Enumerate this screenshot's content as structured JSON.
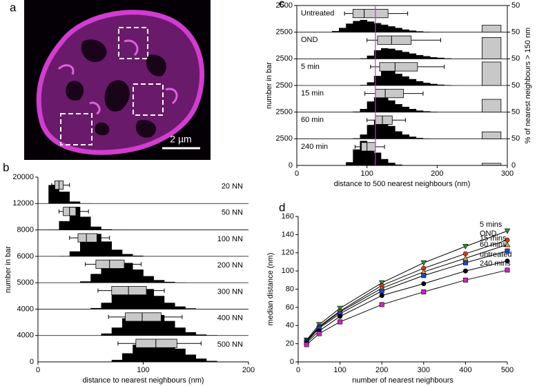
{
  "panels": [
    "a",
    "b",
    "c",
    "d"
  ],
  "image": {
    "scale_bar": "2 µm"
  },
  "chart_data": [
    {
      "type": "histogram-stack",
      "xlabel": "distance to nearest neighbours (nm)",
      "ylabel": "number in bar",
      "xlim": [
        0,
        200
      ],
      "xticks": [
        0,
        100,
        200
      ],
      "bins": [
        0,
        10,
        20,
        30,
        40,
        50,
        60,
        70,
        80,
        90,
        100,
        110,
        120,
        130,
        140,
        150,
        160,
        170,
        180,
        190,
        200
      ],
      "rows": [
        {
          "name": "20 NN",
          "ylim": [
            0,
            20000
          ],
          "values": [
            0,
            14000,
            9000,
            1500,
            200,
            0,
            0,
            0,
            0,
            0,
            0,
            0,
            0,
            0,
            0,
            0,
            0,
            0,
            0,
            0
          ],
          "box": [
            13,
            16,
            20,
            24,
            30
          ]
        },
        {
          "name": "50 NN",
          "ylim": [
            0,
            12000
          ],
          "values": [
            0,
            100,
            4000,
            10500,
            6000,
            1500,
            300,
            50,
            0,
            0,
            0,
            0,
            0,
            0,
            0,
            0,
            0,
            0,
            0,
            0
          ],
          "box": [
            20,
            24,
            30,
            36,
            48
          ]
        },
        {
          "name": "100 NN",
          "ylim": [
            0,
            8000
          ],
          "values": [
            0,
            0,
            100,
            1500,
            5500,
            6800,
            4500,
            2000,
            700,
            200,
            50,
            0,
            0,
            0,
            0,
            0,
            0,
            0,
            0,
            0
          ],
          "box": [
            30,
            38,
            46,
            56,
            68
          ]
        },
        {
          "name": "200 NN",
          "ylim": [
            0,
            6000
          ],
          "values": [
            0,
            0,
            0,
            0,
            300,
            2000,
            4500,
            5200,
            4500,
            3000,
            1500,
            600,
            200,
            50,
            0,
            0,
            0,
            0,
            0,
            0
          ],
          "box": [
            45,
            55,
            68,
            82,
            98
          ]
        },
        {
          "name": "300 NN",
          "ylim": [
            0,
            5000
          ],
          "values": [
            0,
            0,
            0,
            0,
            0,
            200,
            1200,
            3000,
            4000,
            4200,
            3800,
            2500,
            1200,
            500,
            150,
            50,
            0,
            0,
            0,
            0
          ],
          "box": [
            57,
            70,
            86,
            103,
            120
          ]
        },
        {
          "name": "400 NN",
          "ylim": [
            0,
            4000
          ],
          "values": [
            0,
            0,
            0,
            0,
            0,
            0,
            300,
            1200,
            2600,
            3300,
            3400,
            3100,
            2200,
            1200,
            500,
            150,
            50,
            0,
            0,
            0
          ],
          "box": [
            67,
            83,
            99,
            117,
            137
          ]
        },
        {
          "name": "500 NN",
          "ylim": [
            0,
            4000
          ],
          "values": [
            0,
            0,
            0,
            0,
            0,
            0,
            0,
            300,
            1300,
            2600,
            3100,
            3100,
            2800,
            2000,
            1100,
            500,
            150,
            50,
            0,
            0
          ],
          "box": [
            76,
            93,
            112,
            132,
            155
          ]
        }
      ]
    },
    {
      "type": "histogram-stack",
      "xlabel": "distance to 500 nearest neighbours (nm)",
      "ylabel": "number in bar",
      "y2label": "% of nearest neighbours > 150 nm",
      "xlim": [
        0,
        300
      ],
      "xticks": [
        0,
        100,
        200,
        300
      ],
      "y2lim": [
        0,
        50
      ],
      "reference_x": 112,
      "reference_color": "#e020e0",
      "bins": [
        0,
        10,
        20,
        30,
        40,
        50,
        60,
        70,
        80,
        90,
        100,
        110,
        120,
        130,
        140,
        150,
        160,
        170,
        180,
        190,
        200,
        210,
        220,
        230,
        240,
        250,
        260,
        270,
        280,
        290,
        300
      ],
      "rows": [
        {
          "name": "Untreated",
          "ylim": [
            0,
            2500
          ],
          "pct": 13,
          "values": [
            0,
            0,
            0,
            0,
            0,
            100,
            400,
            800,
            1050,
            1150,
            1000,
            850,
            700,
            550,
            400,
            250,
            150,
            80,
            30,
            10,
            0,
            0,
            0,
            0,
            0,
            0,
            0,
            0,
            0,
            0
          ],
          "box": [
            68,
            80,
            96,
            130,
            158
          ]
        },
        {
          "name": "OND",
          "ylim": [
            0,
            2500
          ],
          "pct": 40,
          "values": [
            0,
            0,
            0,
            0,
            0,
            0,
            0,
            0,
            0,
            50,
            300,
            800,
            1000,
            950,
            800,
            650,
            500,
            350,
            250,
            150,
            100,
            50,
            20,
            0,
            0,
            0,
            0,
            0,
            0,
            0
          ],
          "box": [
            100,
            115,
            135,
            163,
            205
          ]
        },
        {
          "name": "5 min",
          "ylim": [
            0,
            2500
          ],
          "pct": 44,
          "values": [
            0,
            0,
            0,
            0,
            0,
            0,
            0,
            0,
            0,
            50,
            300,
            900,
            1400,
            1350,
            1100,
            850,
            600,
            400,
            250,
            150,
            80,
            40,
            10,
            0,
            0,
            0,
            0,
            0,
            0,
            0
          ],
          "box": [
            105,
            118,
            140,
            172,
            210
          ]
        },
        {
          "name": "15 min",
          "ylim": [
            0,
            2500
          ],
          "pct": 24,
          "values": [
            0,
            0,
            0,
            0,
            0,
            0,
            0,
            0,
            50,
            300,
            1000,
            1400,
            1350,
            1100,
            750,
            500,
            300,
            150,
            80,
            30,
            10,
            0,
            0,
            0,
            0,
            0,
            0,
            0,
            0,
            0
          ],
          "box": [
            97,
            112,
            126,
            152,
            180
          ]
        },
        {
          "name": "60 min",
          "ylim": [
            0,
            2500
          ],
          "pct": 13,
          "values": [
            0,
            0,
            0,
            0,
            0,
            0,
            0,
            0,
            50,
            400,
            1300,
            1800,
            1600,
            1200,
            700,
            400,
            200,
            80,
            30,
            0,
            0,
            0,
            0,
            0,
            0,
            0,
            0,
            0,
            0,
            0
          ],
          "box": [
            100,
            112,
            122,
            136,
            155
          ]
        },
        {
          "name": "240 min",
          "ylim": [
            0,
            2500
          ],
          "pct": 4,
          "values": [
            0,
            0,
            0,
            0,
            0,
            0,
            30,
            300,
            1500,
            2300,
            2000,
            1200,
            600,
            250,
            80,
            20,
            0,
            0,
            0,
            0,
            0,
            0,
            0,
            0,
            0,
            0,
            0,
            0,
            0,
            0
          ],
          "box": [
            83,
            92,
            100,
            112,
            125
          ]
        }
      ]
    },
    {
      "type": "line",
      "xlabel": "number of nearest neighbours",
      "ylabel": "median distance (nm)",
      "x": [
        20,
        50,
        100,
        200,
        300,
        400,
        500
      ],
      "xlim": [
        0,
        500
      ],
      "xticks": [
        0,
        100,
        200,
        300,
        400,
        500
      ],
      "ylim": [
        0,
        160
      ],
      "yticks": [
        0,
        20,
        40,
        60,
        80,
        100,
        120,
        140,
        160
      ],
      "series": [
        {
          "name": "5 mins",
          "color": "#2a9a2a",
          "marker": "triangle-down",
          "values": [
            24,
            41,
            59,
            87,
            109,
            127,
            144
          ]
        },
        {
          "name": "OND",
          "color": "#d04020",
          "marker": "circle",
          "values": [
            23,
            39,
            56,
            84,
            103,
            119,
            134
          ]
        },
        {
          "name": "15 mins",
          "color": "#f0a020",
          "marker": "triangle-up",
          "values": [
            22,
            38,
            55,
            81,
            99,
            114,
            129
          ]
        },
        {
          "name": "60 mins",
          "color": "#2040d0",
          "marker": "square",
          "values": [
            22,
            37,
            53,
            78,
            95,
            109,
            122
          ]
        },
        {
          "name": "untreated",
          "color": "#000000",
          "marker": "circle",
          "values": [
            21,
            34,
            50,
            73,
            86,
            100,
            111
          ]
        },
        {
          "name": "240 mins",
          "color": "#d020c0",
          "marker": "square",
          "values": [
            19,
            31,
            44,
            63,
            77,
            90,
            101
          ]
        }
      ]
    }
  ]
}
